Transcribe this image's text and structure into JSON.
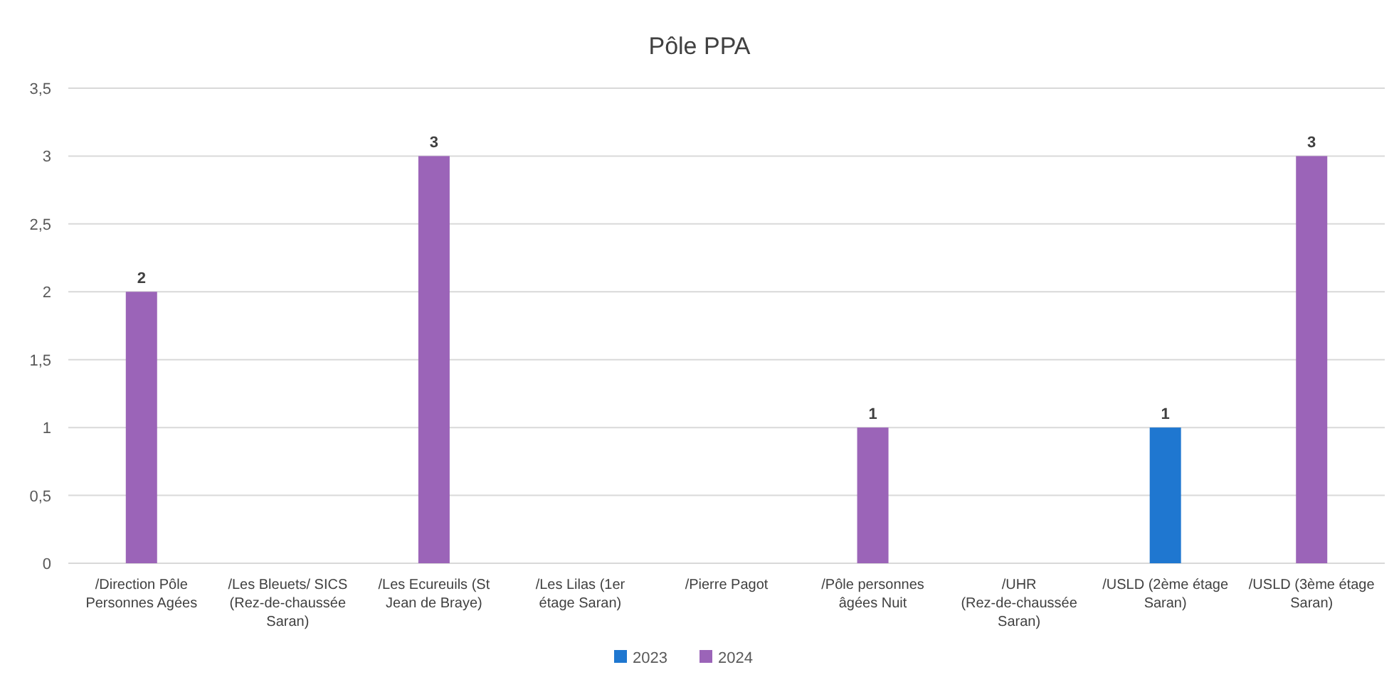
{
  "chart_data": {
    "type": "bar",
    "title": "Pôle PPA",
    "categories": [
      "/Direction Pôle Personnes Agées",
      "/Les Bleuets/ SICS (Rez-de-chaussée Saran)",
      "/Les Ecureuils (St Jean de Braye)",
      "/Les Lilas (1er étage Saran)",
      "/Pierre Pagot",
      "/Pôle personnes âgées Nuit",
      "/UHR (Rez-de-chaussée Saran)",
      "/USLD (2ème étage Saran)",
      "/USLD (3ème étage Saran)"
    ],
    "series": [
      {
        "name": "2023",
        "color": "#1f77d0",
        "values": [
          null,
          null,
          null,
          null,
          null,
          null,
          null,
          1,
          null
        ]
      },
      {
        "name": "2024",
        "color": "#9b64b8",
        "values": [
          2,
          null,
          3,
          null,
          null,
          1,
          null,
          null,
          3
        ]
      }
    ],
    "ylim": [
      0,
      3.5
    ],
    "yticks": [
      {
        "value": 0,
        "label": "0"
      },
      {
        "value": 0.5,
        "label": "0,5"
      },
      {
        "value": 1,
        "label": "1"
      },
      {
        "value": 1.5,
        "label": "1,5"
      },
      {
        "value": 2,
        "label": "2"
      },
      {
        "value": 2.5,
        "label": "2,5"
      },
      {
        "value": 3,
        "label": "3"
      },
      {
        "value": 3.5,
        "label": "3,5"
      }
    ],
    "grid": "y",
    "legend": "bottom",
    "data_labels": true
  }
}
